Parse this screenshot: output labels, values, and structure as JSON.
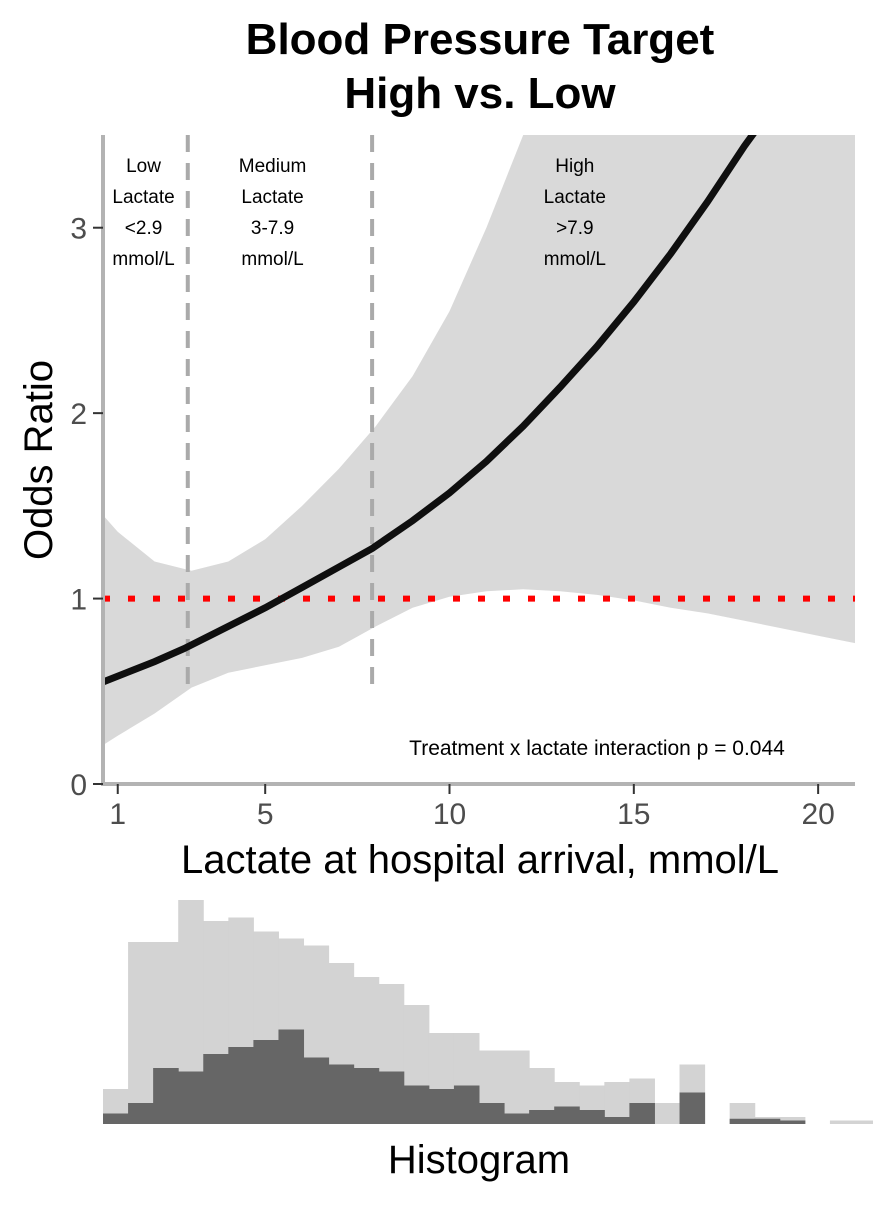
{
  "chart_data": [
    {
      "type": "line",
      "title": [
        "Blood Pressure Target",
        "High vs. Low"
      ],
      "xlabel": "Lactate at hospital arrival, mmol/L",
      "ylabel": "Odds Ratio",
      "xlim": [
        0.6,
        21
      ],
      "ylim": [
        0,
        3.5
      ],
      "x_ticks": [
        1,
        5,
        10,
        15,
        20
      ],
      "y_ticks": [
        0,
        1,
        2,
        3
      ],
      "series": [
        {
          "x": [
            0.6,
            2,
            2.8,
            4,
            5,
            6,
            7,
            7.9,
            9,
            10,
            11,
            12,
            13,
            14,
            15,
            16,
            17,
            18,
            18.4
          ],
          "values": [
            0.55,
            0.66,
            0.73,
            0.85,
            0.95,
            1.06,
            1.17,
            1.27,
            1.42,
            1.57,
            1.74,
            1.93,
            2.14,
            2.36,
            2.6,
            2.86,
            3.14,
            3.44,
            3.55
          ]
        }
      ],
      "confidence_band": {
        "x": [
          0.6,
          1,
          2,
          3,
          4,
          5,
          6,
          7,
          8,
          9,
          10,
          11,
          12,
          13,
          14,
          15,
          16,
          17,
          18,
          19,
          20,
          21
        ],
        "upper": [
          1.45,
          1.36,
          1.2,
          1.15,
          1.2,
          1.32,
          1.5,
          1.7,
          1.93,
          2.2,
          2.55,
          3.0,
          3.5,
          3.5,
          3.5,
          3.5,
          3.5,
          3.5,
          3.5,
          3.5,
          3.5,
          3.5
        ],
        "lower": [
          0.21,
          0.26,
          0.38,
          0.52,
          0.6,
          0.64,
          0.68,
          0.74,
          0.85,
          0.95,
          1.01,
          1.04,
          1.05,
          1.04,
          1.02,
          0.99,
          0.95,
          0.92,
          0.88,
          0.84,
          0.8,
          0.76
        ]
      },
      "reference_line": {
        "y": 1,
        "color": "#ff0000",
        "style": "dotted"
      },
      "cutoff_lines": {
        "x": [
          2.9,
          7.9
        ],
        "color": "#aaaaaa",
        "style": "dashed"
      },
      "regions": [
        {
          "lines": [
            "Low",
            "Lactate",
            "<2.9",
            "mmol/L"
          ]
        },
        {
          "lines": [
            "Medium",
            "Lactate",
            "3-7.9",
            "mmol/L"
          ]
        },
        {
          "lines": [
            "High",
            "Lactate",
            ">7.9",
            "mmol/L"
          ]
        }
      ],
      "annotation": "Treatment x lactate interaction p = 0.044",
      "colors": {
        "curve": "#0f0f0f",
        "band": "#d9d9d9",
        "axis": "#b3b3b3"
      }
    },
    {
      "type": "bar",
      "xlabel": "Histogram",
      "bin_width": 0.68,
      "x_start": 0.6,
      "overall_counts": [
        1.0,
        5.2,
        5.2,
        6.4,
        5.8,
        5.9,
        5.5,
        5.3,
        5.1,
        4.6,
        4.2,
        4.0,
        3.4,
        2.6,
        2.6,
        2.1,
        2.1,
        1.6,
        1.2,
        1.1,
        1.2,
        1.3,
        0.6,
        1.7,
        0,
        0.6,
        0.2,
        0.2,
        0,
        0.1,
        0.1,
        0,
        0.05
      ],
      "subgroup_counts": [
        0.3,
        0.6,
        1.6,
        1.5,
        2.0,
        2.2,
        2.4,
        2.7,
        1.9,
        1.7,
        1.6,
        1.5,
        1.1,
        1.0,
        1.1,
        0.6,
        0.3,
        0.4,
        0.5,
        0.4,
        0.2,
        0.6,
        0,
        0.9,
        0,
        0.15,
        0.15,
        0.1,
        0,
        0,
        0,
        0,
        0
      ],
      "colors": {
        "overall": "#d3d3d3",
        "subgroup": "#666666"
      }
    }
  ]
}
